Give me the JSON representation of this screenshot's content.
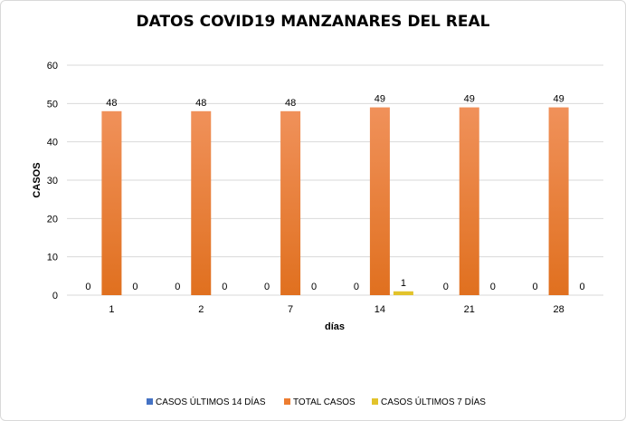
{
  "chart_data": {
    "type": "bar",
    "title": "DATOS COVID19 MANZANARES DEL REAL",
    "xlabel": "días",
    "ylabel": "CASOS",
    "ylim": [
      0,
      60
    ],
    "yticks": [
      0,
      10,
      20,
      30,
      40,
      50,
      60
    ],
    "grid": true,
    "legend_position": "bottom",
    "categories": [
      "1",
      "2",
      "7",
      "14",
      "21",
      "28"
    ],
    "series": [
      {
        "name": "CASOS ÚLTIMOS 14 DÍAS",
        "color": "#4472c4",
        "values": [
          0,
          0,
          0,
          0,
          0,
          0
        ]
      },
      {
        "name": "TOTAL CASOS",
        "color": "#ed7d31",
        "values": [
          48,
          48,
          48,
          49,
          49,
          49
        ]
      },
      {
        "name": "CASOS ÚLTIMOS 7 DÍAS",
        "color": "#e2c32b",
        "values": [
          0,
          0,
          0,
          1,
          0,
          0
        ]
      }
    ]
  }
}
